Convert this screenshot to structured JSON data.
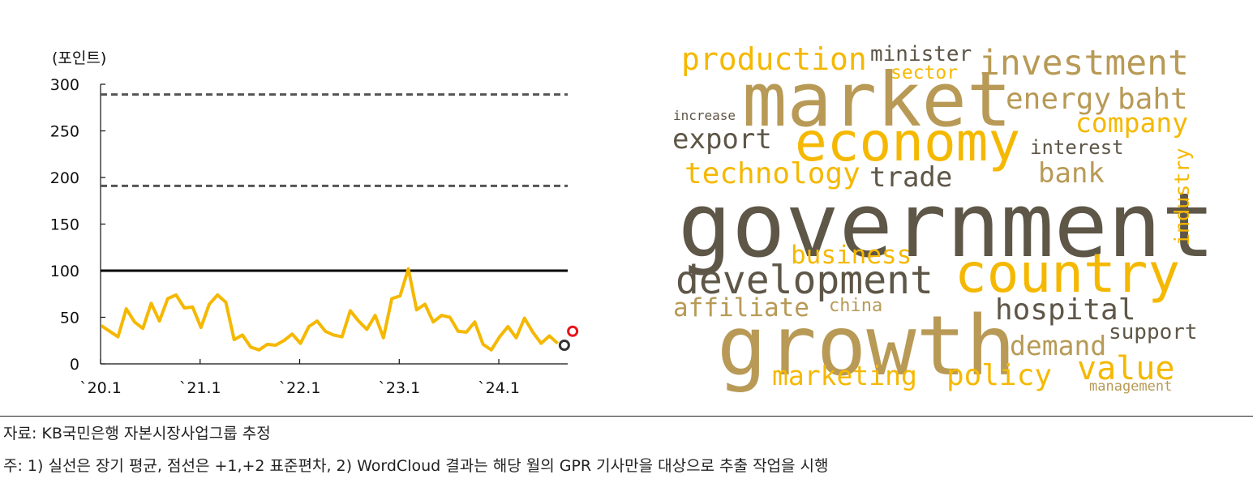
{
  "chart_data": [
    {
      "type": "line",
      "ylabel": "(포인트)",
      "ylim": [
        0,
        300
      ],
      "yticks": [
        "0",
        "50",
        "100",
        "150",
        "200",
        "250",
        "300"
      ],
      "xticks": [
        "`20.1",
        "`21.1",
        "`22.1",
        "`23.1",
        "`24.1"
      ],
      "grid": false,
      "reference_lines": [
        {
          "value": 100,
          "style": "solid"
        },
        {
          "value": 191,
          "style": "dashed"
        },
        {
          "value": 289,
          "style": "dashed"
        }
      ],
      "series": [
        {
          "color": "#F5B800",
          "x": [
            "2020-01",
            "2020-02",
            "2020-03",
            "2020-04",
            "2020-05",
            "2020-06",
            "2020-07",
            "2020-08",
            "2020-09",
            "2020-10",
            "2020-11",
            "2020-12",
            "2021-01",
            "2021-02",
            "2021-03",
            "2021-04",
            "2021-05",
            "2021-06",
            "2021-07",
            "2021-08",
            "2021-09",
            "2021-10",
            "2021-11",
            "2021-12",
            "2022-01",
            "2022-02",
            "2022-03",
            "2022-04",
            "2022-05",
            "2022-06",
            "2022-07",
            "2022-08",
            "2022-09",
            "2022-10",
            "2022-11",
            "2022-12",
            "2023-01",
            "2023-02",
            "2023-03",
            "2023-04",
            "2023-05",
            "2023-06",
            "2023-07",
            "2023-08",
            "2023-09",
            "2023-10",
            "2023-11",
            "2023-12",
            "2024-01",
            "2024-02",
            "2024-03",
            "2024-04",
            "2024-05",
            "2024-06",
            "2024-07",
            "2024-08"
          ],
          "values": [
            41,
            35,
            29,
            59,
            45,
            38,
            65,
            46,
            70,
            74,
            60,
            61,
            39,
            64,
            74,
            66,
            26,
            31,
            18,
            15,
            21,
            20,
            25,
            32,
            22,
            40,
            46,
            35,
            31,
            29,
            57,
            46,
            37,
            52,
            28,
            70,
            73,
            102,
            58,
            64,
            45,
            52,
            50,
            35,
            34,
            45,
            21,
            15,
            29,
            40,
            28,
            49,
            34,
            22,
            30,
            22
          ]
        }
      ],
      "markers": [
        {
          "x": "2024-09",
          "value": 20,
          "color": "#333333"
        },
        {
          "x": "2024-10",
          "value": 35,
          "color": "#E8141C"
        }
      ]
    },
    {
      "type": "wordcloud",
      "words": [
        {
          "text": "government",
          "color": "#5E5647"
        },
        {
          "text": "market",
          "color": "#B89A56"
        },
        {
          "text": "economy",
          "color": "#F5B800"
        },
        {
          "text": "growth",
          "color": "#B89A56"
        },
        {
          "text": "country",
          "color": "#F5B800"
        },
        {
          "text": "development",
          "color": "#5E5647"
        },
        {
          "text": "investment",
          "color": "#B89A56"
        },
        {
          "text": "production",
          "color": "#F5B800"
        },
        {
          "text": "minister",
          "color": "#5E5647"
        },
        {
          "text": "sector",
          "color": "#F5B800"
        },
        {
          "text": "energy",
          "color": "#B89A56"
        },
        {
          "text": "baht",
          "color": "#B89A56"
        },
        {
          "text": "company",
          "color": "#F5B800"
        },
        {
          "text": "increase",
          "color": "#5E5647"
        },
        {
          "text": "export",
          "color": "#5E5647"
        },
        {
          "text": "interest",
          "color": "#5E5647"
        },
        {
          "text": "technology",
          "color": "#F5B800"
        },
        {
          "text": "trade",
          "color": "#5E5647"
        },
        {
          "text": "bank",
          "color": "#B89A56"
        },
        {
          "text": "industry",
          "color": "#F5B800"
        },
        {
          "text": "business",
          "color": "#F5B800"
        },
        {
          "text": "affiliate",
          "color": "#B89A56"
        },
        {
          "text": "china",
          "color": "#B89A56"
        },
        {
          "text": "hospital",
          "color": "#5E5647"
        },
        {
          "text": "support",
          "color": "#5E5647"
        },
        {
          "text": "demand",
          "color": "#B89A56"
        },
        {
          "text": "marketing",
          "color": "#F5B800"
        },
        {
          "text": "policy",
          "color": "#F5B800"
        },
        {
          "text": "value",
          "color": "#F5B800"
        },
        {
          "text": "management",
          "color": "#B89A56"
        }
      ]
    }
  ],
  "notes": {
    "source": "자료: KB국민은행 자본시장사업그룹 추정",
    "footnote": "주: 1) 실선은 장기 평균, 점선은 +1,+2 표준편차, 2) WordCloud 결과는 해당 월의 GPR 기사만을 대상으로 추출 작업을 시행"
  }
}
